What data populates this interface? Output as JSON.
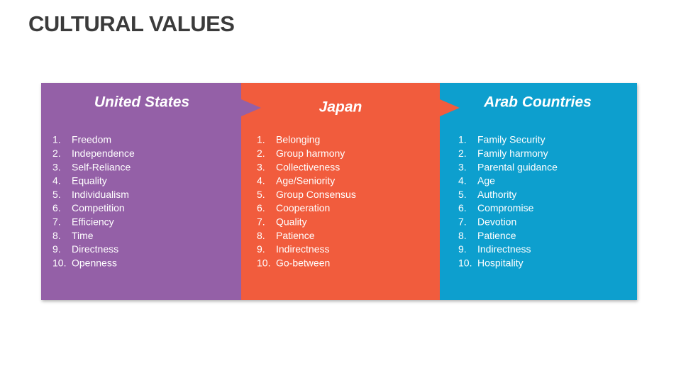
{
  "title": "CULTURAL VALUES",
  "columns": [
    {
      "heading": "United States",
      "items": [
        {
          "num": "1.",
          "text": "Freedom"
        },
        {
          "num": "2.",
          "text": "Independence"
        },
        {
          "num": "3.",
          "text": "Self-Reliance"
        },
        {
          "num": "4.",
          "text": "Equality"
        },
        {
          "num": "5.",
          "text": "Individualism"
        },
        {
          "num": "6.",
          "text": "Competition"
        },
        {
          "num": "7.",
          "text": "Efficiency"
        },
        {
          "num": "8.",
          "text": "Time"
        },
        {
          "num": "9.",
          "text": "Directness"
        },
        {
          "num": "10.",
          "text": "Openness"
        }
      ]
    },
    {
      "heading": "Japan",
      "items": [
        {
          "num": "1.",
          "text": "Belonging"
        },
        {
          "num": "2.",
          "text": "Group harmony"
        },
        {
          "num": "3.",
          "text": "Collectiveness"
        },
        {
          "num": "4.",
          "text": "Age/Seniority"
        },
        {
          "num": "5.",
          "text": "Group Consensus"
        },
        {
          "num": "6.",
          "text": "Cooperation"
        },
        {
          "num": "7.",
          "text": "Quality"
        },
        {
          "num": "8.",
          "text": "Patience"
        },
        {
          "num": "9.",
          "text": "Indirectness"
        },
        {
          "num": "10.",
          "text": "Go-between"
        }
      ]
    },
    {
      "heading": "Arab Countries",
      "items": [
        {
          "num": "1.",
          "text": "Family Security"
        },
        {
          "num": "2.",
          "text": "Family harmony"
        },
        {
          "num": "3.",
          "text": "Parental guidance"
        },
        {
          "num": "4.",
          "text": "Age"
        },
        {
          "num": "5.",
          "text": "Authority"
        },
        {
          "num": "6.",
          "text": "Compromise"
        },
        {
          "num": "7.",
          "text": "Devotion"
        },
        {
          "num": "8.",
          "text": "Patience"
        },
        {
          "num": "9.",
          "text": "Indirectness"
        },
        {
          "num": "10.",
          "text": "Hospitality"
        }
      ]
    }
  ]
}
